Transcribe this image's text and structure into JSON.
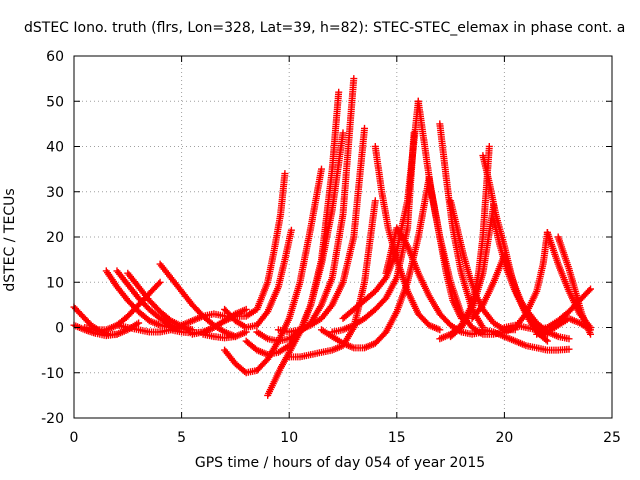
{
  "chart_data": {
    "type": "scatter",
    "title": "dSTEC Iono. truth (flrs, Lon=328, Lat=39, h=82): STEC-STEC_elemax in phase cont. a",
    "xlabel": "GPS time / hours of day 054 of year 2015",
    "ylabel": "dSTEC  / TECUs",
    "xlim": [
      0,
      25
    ],
    "ylim": [
      -20,
      60
    ],
    "xticks": [
      0,
      5,
      10,
      15,
      20,
      25
    ],
    "yticks": [
      -20,
      -10,
      0,
      10,
      20,
      30,
      40,
      50,
      60
    ],
    "grid": true,
    "marker": "+",
    "color": "#ff0000",
    "series": [
      {
        "x": [
          0.0,
          0.4,
          0.8,
          1.2,
          1.6,
          2.0
        ],
        "y": [
          4.5,
          2.5,
          0.5,
          -0.8,
          -1.5,
          -1.5
        ]
      },
      {
        "x": [
          0.0,
          0.5,
          1.0,
          1.5,
          2.0,
          2.5,
          3.0
        ],
        "y": [
          0.5,
          -0.5,
          -1.3,
          -1.8,
          -1.5,
          -0.5,
          1.0
        ]
      },
      {
        "x": [
          1.5,
          2.0,
          2.5,
          3.0,
          3.5,
          4.0,
          4.5
        ],
        "y": [
          12.5,
          9.0,
          6.0,
          3.5,
          1.5,
          0.5,
          0.0
        ]
      },
      {
        "x": [
          2.0,
          2.5,
          3.0,
          3.5,
          4.0,
          4.5,
          5.0
        ],
        "y": [
          12.5,
          9.5,
          6.5,
          4.0,
          2.0,
          0.5,
          -0.3
        ]
      },
      {
        "x": [
          2.5,
          3.0,
          3.5,
          4.0,
          4.5,
          5.0,
          5.5
        ],
        "y": [
          12.0,
          9.0,
          6.0,
          3.5,
          1.5,
          0.3,
          -0.5
        ]
      },
      {
        "x": [
          0.5,
          1.0,
          1.5,
          2.0,
          2.5,
          3.0,
          3.5,
          4.0
        ],
        "y": [
          0.0,
          -0.5,
          -0.5,
          0.5,
          2.5,
          5.0,
          7.5,
          10.0
        ]
      },
      {
        "x": [
          2.0,
          2.5,
          3.0,
          3.5,
          4.0,
          4.5,
          5.0,
          5.5,
          6.0,
          6.5,
          7.0
        ],
        "y": [
          0.5,
          0.0,
          -0.5,
          -1.0,
          -1.0,
          -0.5,
          0.5,
          1.5,
          2.5,
          3.0,
          2.5
        ]
      },
      {
        "x": [
          4.0,
          4.5,
          5.0,
          5.5,
          6.0,
          6.5,
          7.0,
          7.5
        ],
        "y": [
          14.0,
          11.0,
          8.0,
          5.0,
          2.5,
          0.5,
          -1.0,
          -2.0
        ]
      },
      {
        "x": [
          4.5,
          5.0,
          5.5,
          6.0,
          6.5,
          7.0,
          7.5,
          8.0
        ],
        "y": [
          -0.5,
          -1.0,
          -1.2,
          -1.0,
          0.0,
          1.5,
          3.0,
          4.0
        ]
      },
      {
        "x": [
          6.0,
          6.5,
          7.0,
          7.5,
          8.0
        ],
        "y": [
          -1.5,
          -2.0,
          -2.3,
          -2.0,
          -1.0
        ]
      },
      {
        "x": [
          5.5,
          6.0,
          6.5,
          7.0,
          7.5,
          8.0,
          8.5,
          9.0,
          9.3,
          9.6,
          9.8
        ],
        "y": [
          -1.5,
          -1.0,
          0.0,
          1.5,
          2.5,
          2.5,
          4.0,
          10.0,
          17.0,
          25.0,
          34.0
        ]
      },
      {
        "x": [
          7.0,
          7.5,
          8.0,
          8.5,
          9.0,
          9.5,
          9.8,
          10.1
        ],
        "y": [
          4.0,
          1.5,
          0.0,
          0.5,
          3.5,
          9.0,
          15.0,
          21.5
        ]
      },
      {
        "x": [
          7.0,
          7.5,
          8.0,
          8.5,
          9.0,
          9.5,
          10.0,
          10.5,
          11.0,
          11.5
        ],
        "y": [
          -5.0,
          -8.0,
          -10.0,
          -9.5,
          -7.0,
          -3.0,
          2.0,
          10.0,
          22.0,
          35.0
        ]
      },
      {
        "x": [
          9.0,
          9.3,
          9.6,
          10.0,
          10.5,
          11.0,
          11.5,
          12.0,
          12.5
        ],
        "y": [
          -15.0,
          -12.0,
          -9.0,
          -5.5,
          -1.0,
          5.0,
          14.0,
          26.0,
          43.0
        ]
      },
      {
        "x": [
          8.0,
          8.5,
          9.0,
          9.5,
          10.0,
          10.5,
          11.0,
          11.5,
          12.0,
          12.3
        ],
        "y": [
          -3.0,
          -5.0,
          -6.0,
          -5.5,
          -4.0,
          -1.0,
          5.0,
          15.0,
          35.0,
          52.0
        ]
      },
      {
        "x": [
          8.5,
          9.0,
          9.5,
          10.0,
          10.5,
          11.0,
          11.5,
          12.0,
          12.5,
          13.0
        ],
        "y": [
          -1.0,
          -2.5,
          -3.0,
          -2.5,
          -1.0,
          1.0,
          5.0,
          11.0,
          25.0,
          55.0
        ]
      },
      {
        "x": [
          9.5,
          10.0,
          10.5,
          11.0,
          11.5,
          12.0,
          12.5,
          13.0,
          13.5
        ],
        "y": [
          -0.5,
          -1.0,
          -0.5,
          0.5,
          2.0,
          5.0,
          10.0,
          20.0,
          44.0
        ]
      },
      {
        "x": [
          10.0,
          10.5,
          11.0,
          11.5,
          12.0,
          12.5,
          13.0,
          13.5,
          14.0
        ],
        "y": [
          -6.5,
          -6.5,
          -6.0,
          -5.5,
          -5.0,
          -4.0,
          0.0,
          10.0,
          28.0
        ]
      },
      {
        "x": [
          11.5,
          12.0,
          12.5,
          13.0,
          13.5,
          14.0,
          14.5,
          15.0,
          15.5,
          16.0,
          16.5
        ],
        "y": [
          -0.5,
          -2.0,
          -3.5,
          -4.5,
          -4.5,
          -3.5,
          -1.0,
          3.5,
          10.0,
          20.0,
          33.0
        ]
      },
      {
        "x": [
          12.0,
          12.5,
          13.0,
          13.5,
          14.0,
          14.5,
          15.0,
          15.5,
          15.8
        ],
        "y": [
          -1.0,
          -0.5,
          0.5,
          2.0,
          4.0,
          6.5,
          11.0,
          22.0,
          43.0
        ]
      },
      {
        "x": [
          12.5,
          13.0,
          13.5,
          14.0,
          14.5,
          15.0,
          15.5,
          16.0
        ],
        "y": [
          2.0,
          4.0,
          6.0,
          8.0,
          11.0,
          17.0,
          28.0,
          50.0
        ]
      },
      {
        "x": [
          14.0,
          14.3,
          14.6,
          15.0,
          15.5,
          16.0,
          16.5,
          17.0
        ],
        "y": [
          40.0,
          30.0,
          22.0,
          15.0,
          8.0,
          3.0,
          0.5,
          -0.5
        ]
      },
      {
        "x": [
          14.5,
          15.0,
          15.5,
          16.0,
          16.5,
          17.0,
          17.5,
          18.0,
          18.5,
          19.0
        ],
        "y": [
          12.0,
          22.0,
          18.0,
          12.0,
          7.0,
          3.0,
          0.5,
          -1.0,
          -1.5,
          -1.0
        ]
      },
      {
        "x": [
          16.0,
          16.3,
          16.6,
          17.0,
          17.3,
          17.6,
          18.0
        ],
        "y": [
          50.0,
          40.0,
          30.0,
          20.0,
          12.0,
          6.0,
          2.0
        ]
      },
      {
        "x": [
          16.5,
          17.0,
          17.5,
          18.0,
          18.5,
          19.0,
          19.5,
          20.0,
          20.5
        ],
        "y": [
          33.0,
          20.0,
          10.0,
          3.0,
          0.0,
          -1.5,
          -1.5,
          -1.0,
          0.0
        ]
      },
      {
        "x": [
          17.0,
          17.3,
          17.6,
          18.0,
          18.5,
          19.0
        ],
        "y": [
          45.0,
          33.0,
          22.0,
          12.0,
          4.0,
          0.0
        ]
      },
      {
        "x": [
          17.5,
          17.8,
          18.1,
          18.4,
          18.7,
          19.0,
          19.5,
          20.0,
          20.5
        ],
        "y": [
          28.0,
          22.0,
          16.0,
          11.0,
          7.0,
          4.0,
          1.0,
          -0.5,
          -0.5
        ]
      },
      {
        "x": [
          17.0,
          17.5,
          18.0,
          18.5,
          18.8,
          19.0,
          19.3
        ],
        "y": [
          -2.5,
          -1.5,
          0.5,
          5.0,
          12.0,
          20.0,
          40.0
        ]
      },
      {
        "x": [
          17.5,
          18.0,
          18.5,
          19.0,
          19.5
        ],
        "y": [
          -2.0,
          0.0,
          4.0,
          12.0,
          27.0
        ]
      },
      {
        "x": [
          18.5,
          19.0,
          19.5,
          20.0,
          20.5,
          21.0,
          21.5,
          22.0
        ],
        "y": [
          2.0,
          5.0,
          10.0,
          16.0,
          9.0,
          3.0,
          -1.0,
          -3.0
        ]
      },
      {
        "x": [
          19.0,
          19.3,
          19.6,
          20.0,
          20.3,
          20.6,
          21.0,
          21.5,
          22.0
        ],
        "y": [
          38.0,
          32.0,
          25.0,
          18.0,
          12.0,
          7.0,
          3.0,
          0.0,
          -1.5
        ]
      },
      {
        "x": [
          19.5,
          19.8,
          20.1,
          20.5,
          21.0,
          21.5,
          22.0,
          22.5,
          23.0
        ],
        "y": [
          24.0,
          18.0,
          13.0,
          8.0,
          4.0,
          1.0,
          -1.0,
          -2.0,
          -2.5
        ]
      },
      {
        "x": [
          19.0,
          19.5,
          20.0,
          20.5,
          21.0,
          21.5,
          22.0,
          22.5,
          23.0
        ],
        "y": [
          -0.5,
          -1.0,
          -2.0,
          -3.0,
          -4.0,
          -4.5,
          -5.0,
          -5.0,
          -4.8
        ]
      },
      {
        "x": [
          20.0,
          20.5,
          21.0,
          21.5,
          22.0,
          22.5,
          23.0,
          23.5,
          24.0
        ],
        "y": [
          0.0,
          0.5,
          0.0,
          -0.5,
          0.0,
          1.5,
          3.5,
          6.0,
          8.5
        ]
      },
      {
        "x": [
          20.5,
          21.0,
          21.5,
          21.8,
          22.0
        ],
        "y": [
          0.0,
          3.0,
          8.0,
          14.0,
          21.0
        ]
      },
      {
        "x": [
          22.0,
          22.5,
          23.0,
          23.5,
          24.0
        ],
        "y": [
          21.0,
          14.0,
          8.0,
          3.0,
          0.0
        ]
      },
      {
        "x": [
          22.5,
          23.0,
          23.3,
          23.6,
          24.0
        ],
        "y": [
          20.0,
          13.0,
          8.0,
          3.0,
          -1.5
        ]
      },
      {
        "x": [
          21.5,
          22.0,
          22.5,
          23.0,
          23.5,
          24.0
        ],
        "y": [
          -1.5,
          -1.0,
          0.5,
          2.0,
          1.0,
          -0.5
        ]
      }
    ]
  }
}
